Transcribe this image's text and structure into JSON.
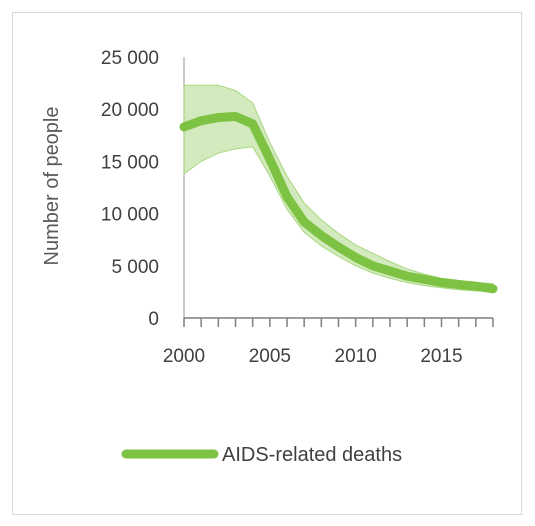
{
  "chart_data": {
    "type": "line",
    "title": "",
    "xlabel": "",
    "ylabel": "Number of people",
    "xlim": [
      2000,
      2018
    ],
    "ylim": [
      0,
      25000
    ],
    "y_tick_labels": [
      "0",
      "5 000",
      "10 000",
      "15 000",
      "20 000",
      "25 000"
    ],
    "x_tick_labels": [
      "2000",
      "2005",
      "2010",
      "2015"
    ],
    "grid": false,
    "legend_position": "bottom",
    "x": [
      2000,
      2001,
      2002,
      2003,
      2004,
      2005,
      2006,
      2007,
      2008,
      2009,
      2010,
      2011,
      2012,
      2013,
      2014,
      2015,
      2016,
      2017,
      2018
    ],
    "series": [
      {
        "name": "AIDS-related deaths",
        "color": "#7dc242",
        "values": [
          18300,
          18900,
          19200,
          19300,
          18600,
          15200,
          11600,
          9200,
          7900,
          6800,
          5800,
          5000,
          4500,
          4000,
          3700,
          3400,
          3200,
          3050,
          2800
        ],
        "upper": [
          22300,
          22300,
          22300,
          21800,
          20600,
          16800,
          13600,
          11000,
          9400,
          8100,
          7000,
          6200,
          5400,
          4700,
          4200,
          3800,
          3600,
          3400,
          3300
        ],
        "lower": [
          13800,
          15000,
          15800,
          16200,
          16400,
          13600,
          10400,
          8200,
          6900,
          5900,
          5000,
          4300,
          3800,
          3400,
          3100,
          2900,
          2700,
          2600,
          2500
        ]
      }
    ]
  }
}
